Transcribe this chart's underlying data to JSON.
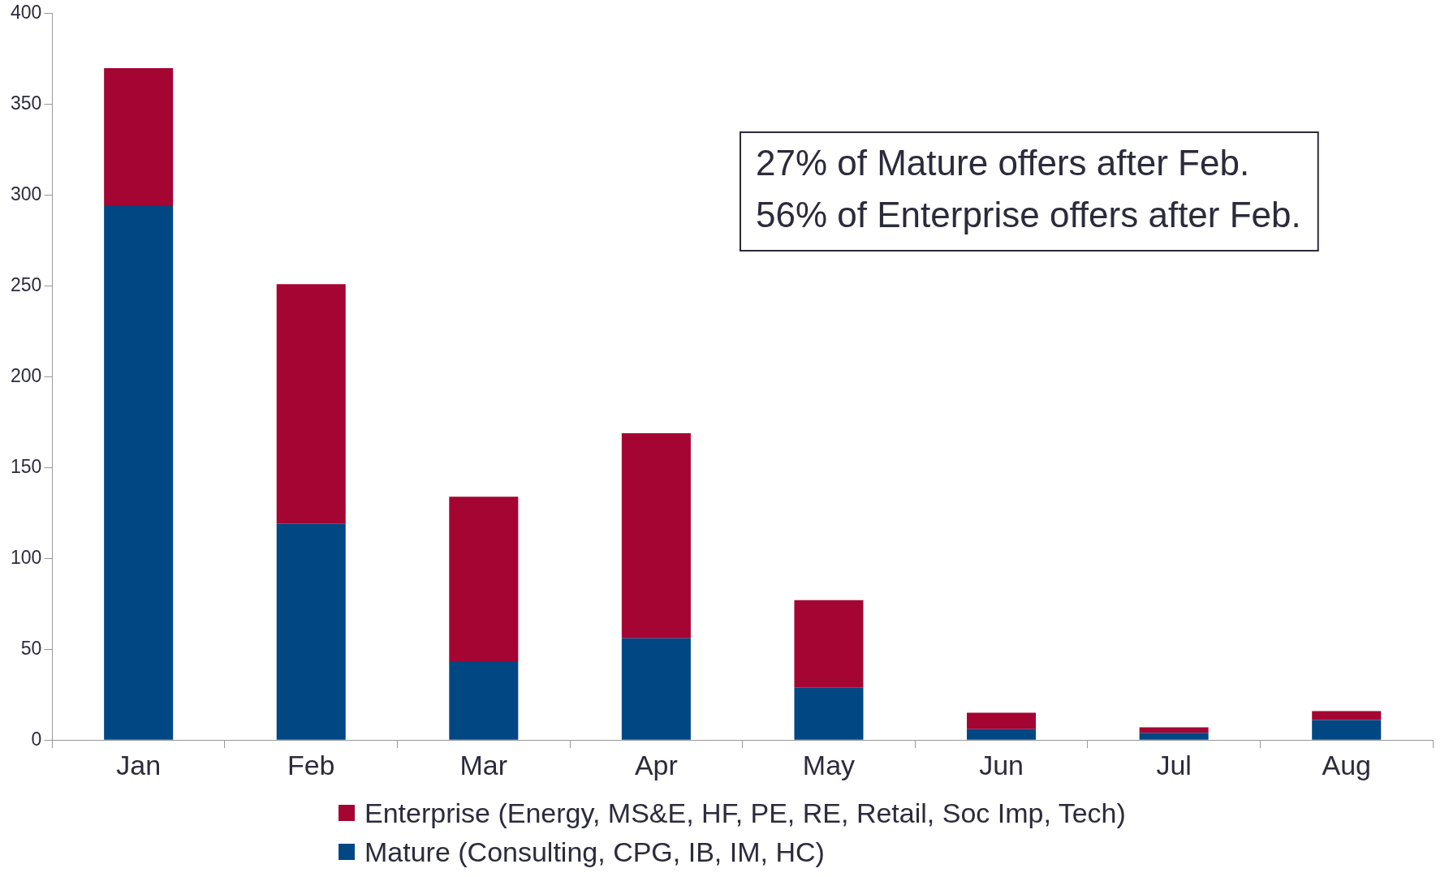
{
  "chart_data": {
    "type": "bar",
    "stacked": true,
    "categories": [
      "Jan",
      "Feb",
      "Mar",
      "Apr",
      "May",
      "Jun",
      "Jul",
      "Aug"
    ],
    "series": [
      {
        "name": "Mature (Consulting, CPG, IB, IM, HC)",
        "color": "#004784",
        "values": [
          294,
          119,
          43,
          56,
          29,
          6,
          4,
          11
        ]
      },
      {
        "name": "Enterprise (Energy, MS&E, HF, PE, RE, Retail, Soc Imp, Tech)",
        "color": "#a50533",
        "values": [
          76,
          132,
          91,
          113,
          48,
          9,
          3,
          5
        ]
      }
    ],
    "ylim": [
      0,
      400
    ],
    "yticks": [
      0,
      50,
      100,
      150,
      200,
      250,
      300,
      350,
      400
    ],
    "grid": false,
    "legend": "bottom",
    "annotations": [
      "27% of Mature offers after Feb.\n56% of Enterprise offers after Feb."
    ]
  }
}
